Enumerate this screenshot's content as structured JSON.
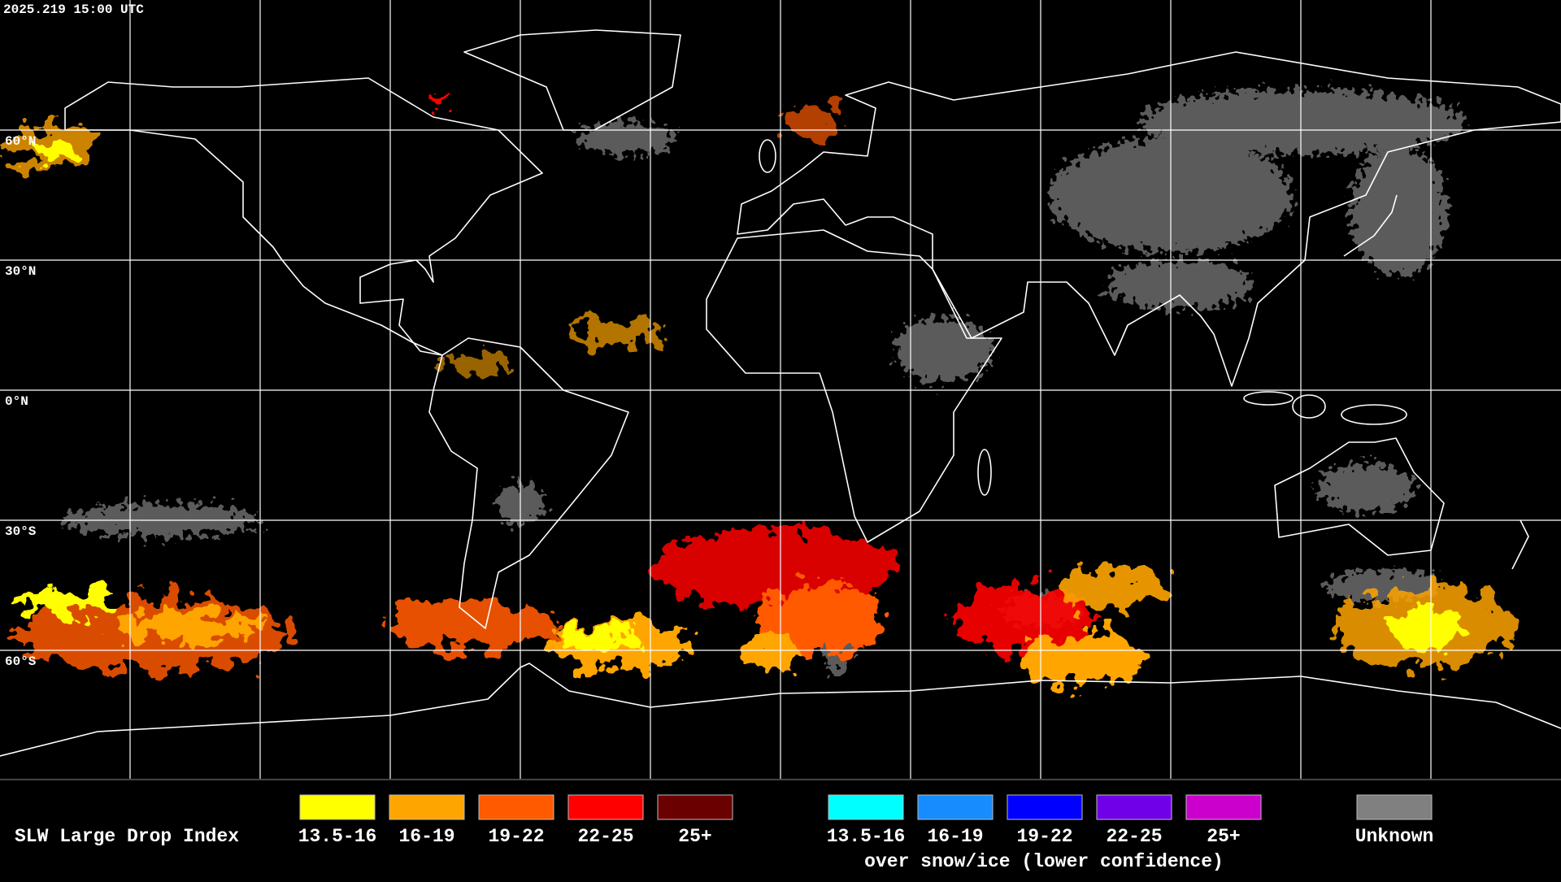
{
  "header": {
    "timestamp": "2025.219 15:00 UTC"
  },
  "map": {
    "latitude_labels": [
      "60°N",
      "30°N",
      "0°N",
      "30°S",
      "60°S"
    ]
  },
  "legend": {
    "title": "SLW Large Drop Index",
    "groups": [
      {
        "items": [
          {
            "label": "13.5-16",
            "color": "#ffff00"
          },
          {
            "label": "16-19",
            "color": "#ffa500"
          },
          {
            "label": "19-22",
            "color": "#ff5a00"
          },
          {
            "label": "22-25",
            "color": "#ff0000"
          },
          {
            "label": "25+",
            "color": "#6b0000"
          }
        ]
      },
      {
        "items": [
          {
            "label": "13.5-16",
            "color": "#00ffff"
          },
          {
            "label": "16-19",
            "color": "#168cff"
          },
          {
            "label": "19-22",
            "color": "#0000ff"
          },
          {
            "label": "22-25",
            "color": "#7000e8"
          },
          {
            "label": "25+",
            "color": "#cc00cc"
          }
        ],
        "caption": "over snow/ice (lower confidence)"
      }
    ],
    "unknown": {
      "label": "Unknown",
      "color": "#808080"
    }
  }
}
